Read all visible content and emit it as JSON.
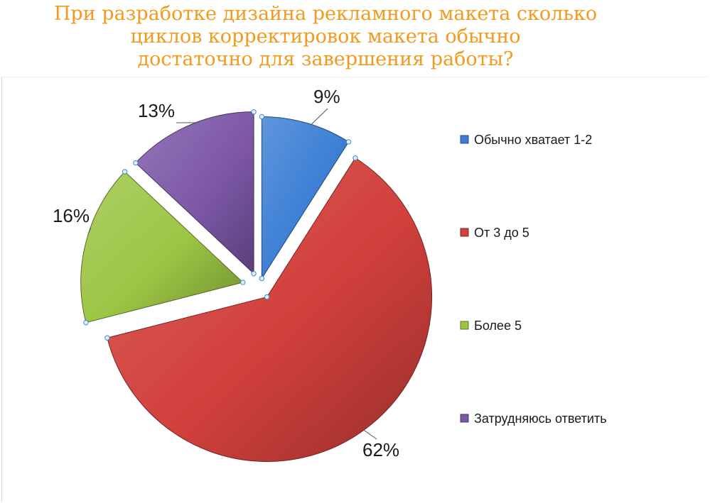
{
  "chart_data": {
    "type": "pie",
    "title_lines": [
      "При разработке дизайна рекламного макета сколько",
      "циклов корректировок макета обычно",
      "достаточно для завершения работы?"
    ],
    "categories": [
      "Обычно хватает 1-2",
      "От 3 до 5",
      "Более 5",
      "Затрудняюсь ответить"
    ],
    "values": [
      9,
      62,
      16,
      13
    ],
    "data_labels": [
      "9%",
      "62%",
      "16%",
      "13%"
    ],
    "colors": [
      "#3C7FD4",
      "#D2403C",
      "#9CC544",
      "#7D58A8"
    ],
    "legend_position": "right",
    "exploded": true
  }
}
